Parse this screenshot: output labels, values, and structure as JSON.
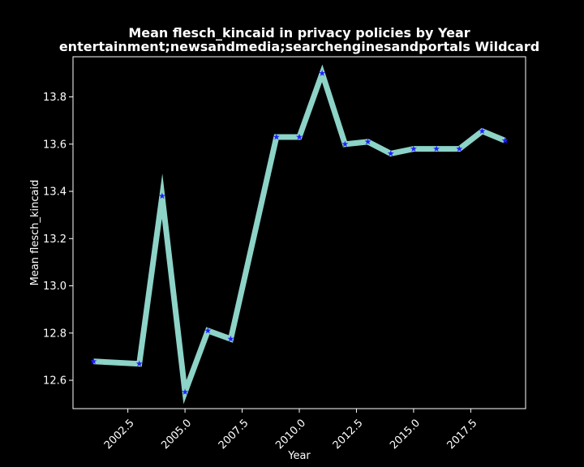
{
  "chart_data": {
    "type": "line",
    "title": "Mean flesch_kincaid in privacy policies by Year",
    "subtitle": "entertainment;newsandmedia;searchenginesandportals Wildcard",
    "xlabel": "Year",
    "ylabel": "Mean flesch_kincaid",
    "xlim": [
      2000.1,
      2019.9
    ],
    "ylim": [
      12.48,
      13.97
    ],
    "x_ticks": [
      "2002.5",
      "2005.0",
      "2007.5",
      "2010.0",
      "2012.5",
      "2015.0",
      "2017.5"
    ],
    "y_ticks": [
      "12.6",
      "12.8",
      "13.0",
      "13.2",
      "13.4",
      "13.6",
      "13.8"
    ],
    "grid": false,
    "legend": "none",
    "series": [
      {
        "x": [
          2001,
          2003,
          2004,
          2005,
          2006,
          2007,
          2009,
          2010,
          2011,
          2012,
          2013,
          2014,
          2015,
          2016,
          2017,
          2018,
          2019
        ],
        "y": [
          12.68,
          12.67,
          13.38,
          12.55,
          12.81,
          12.775,
          13.63,
          13.63,
          13.9,
          13.6,
          13.61,
          13.56,
          13.58,
          13.58,
          13.58,
          13.655,
          13.615
        ]
      }
    ],
    "colors": {
      "background": "#000000",
      "line": "#8dd3c7",
      "marker": "#1f1fff",
      "axes": "#ffffff"
    },
    "marker": "star"
  }
}
